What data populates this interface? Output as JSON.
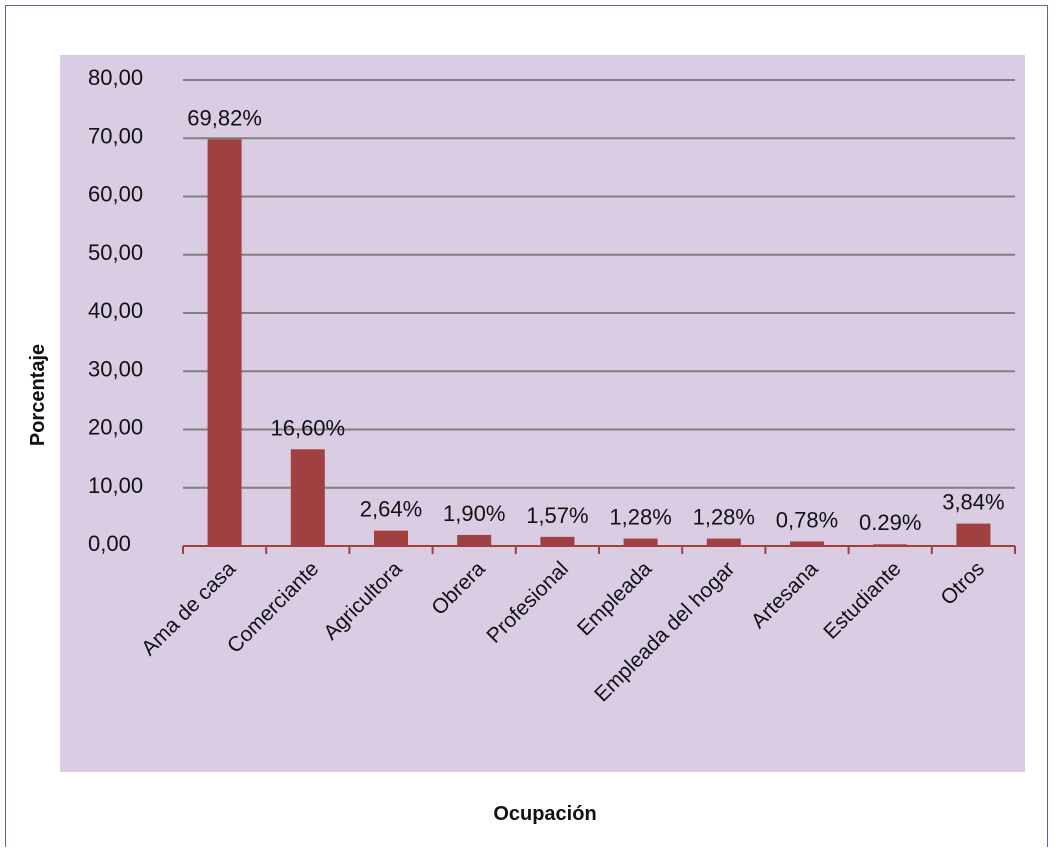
{
  "colors": {
    "plot_area": "#d9cce3",
    "bar": "#a04040",
    "gridline": "#808080",
    "axis": "#a04040",
    "frame": "#7a5a93"
  },
  "chart_data": {
    "type": "bar",
    "categories": [
      "Ama de casa",
      "Comerciante",
      "Agricultora",
      "Obrera",
      "Profesional",
      "Empleada",
      "Empleada del hogar",
      "Artesana",
      "Estudiante",
      "Otros"
    ],
    "values": [
      69.82,
      16.6,
      2.64,
      1.9,
      1.57,
      1.28,
      1.28,
      0.78,
      0.29,
      3.84
    ],
    "data_labels": [
      "69,82%",
      "16,60%",
      "2,64%",
      "1,90%",
      "1,57%",
      "1,28%",
      "1,28%",
      "0,78%",
      "0.29%",
      "3,84%"
    ],
    "yticks": [
      "0,00",
      "10,00",
      "20,00",
      "30,00",
      "40,00",
      "50,00",
      "60,00",
      "70,00",
      "80,00"
    ],
    "ylim": [
      0,
      80
    ],
    "xlabel": "Ocupación",
    "ylabel": "Porcentaje",
    "grid": true,
    "legend": false
  }
}
